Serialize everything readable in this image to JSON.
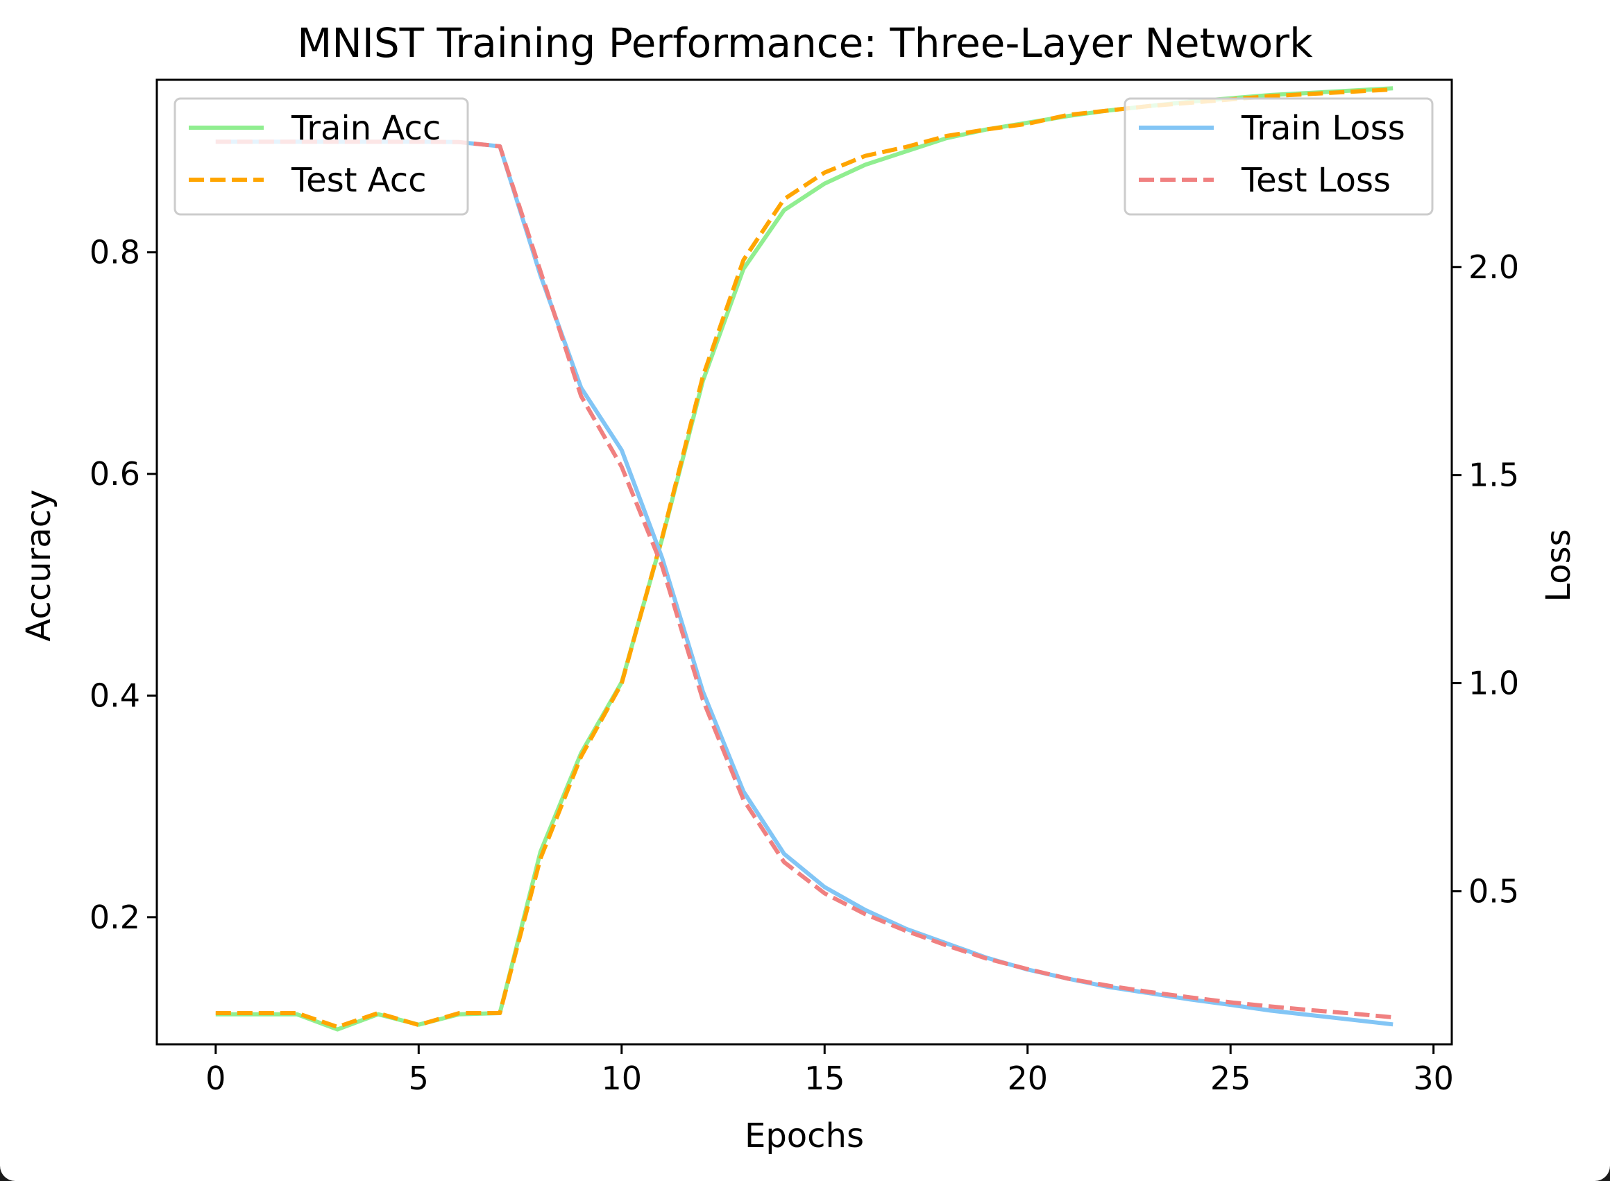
{
  "chart_data": {
    "type": "line",
    "title": "MNIST Training Performance: Three-Layer Network",
    "xlabel": "Epochs",
    "ylabel": "Accuracy",
    "y2label": "Loss",
    "xlim": [
      -1.45,
      30.45
    ],
    "ylim": [
      0.0853,
      0.9557
    ],
    "y2lim": [
      0.1322,
      2.4498
    ],
    "xticks": [
      "0",
      "5",
      "10",
      "15",
      "20",
      "25",
      "30"
    ],
    "yticks": [
      "0.2",
      "0.4",
      "0.6",
      "0.8"
    ],
    "y2ticks": [
      "0.5",
      "1.0",
      "1.5",
      "2.0"
    ],
    "x": [
      0,
      1,
      2,
      3,
      4,
      5,
      6,
      7,
      8,
      9,
      10,
      11,
      12,
      13,
      14,
      15,
      16,
      17,
      18,
      19,
      20,
      21,
      22,
      23,
      24,
      25,
      26,
      27,
      28,
      29
    ],
    "series": [
      {
        "name": "Train Acc",
        "axis": "left",
        "color": "#90ee90",
        "style": "solid",
        "values": [
          0.1124,
          0.1124,
          0.1124,
          0.0987,
          0.1124,
          0.103,
          0.1124,
          0.1135,
          0.259,
          0.348,
          0.412,
          0.542,
          0.684,
          0.785,
          0.838,
          0.862,
          0.879,
          0.891,
          0.903,
          0.911,
          0.917,
          0.923,
          0.928,
          0.932,
          0.936,
          0.939,
          0.942,
          0.944,
          0.946,
          0.948
        ]
      },
      {
        "name": "Test Acc",
        "axis": "left",
        "color": "#ffa500",
        "style": "dashed",
        "values": [
          0.1135,
          0.1135,
          0.1135,
          0.101,
          0.1135,
          0.1028,
          0.1135,
          0.1135,
          0.253,
          0.345,
          0.411,
          0.543,
          0.688,
          0.793,
          0.848,
          0.872,
          0.887,
          0.895,
          0.905,
          0.911,
          0.916,
          0.924,
          0.928,
          0.932,
          0.935,
          0.938,
          0.941,
          0.943,
          0.945,
          0.947
        ]
      },
      {
        "name": "Train Loss",
        "axis": "right",
        "color": "#82c5f5",
        "style": "solid",
        "values": [
          2.301,
          2.301,
          2.301,
          2.301,
          2.301,
          2.301,
          2.3,
          2.29,
          1.98,
          1.71,
          1.56,
          1.3,
          0.98,
          0.74,
          0.59,
          0.51,
          0.455,
          0.41,
          0.375,
          0.34,
          0.312,
          0.29,
          0.27,
          0.255,
          0.24,
          0.227,
          0.213,
          0.202,
          0.191,
          0.18
        ]
      },
      {
        "name": "Test Loss",
        "axis": "right",
        "color": "#f08080",
        "style": "dashed",
        "values": [
          2.301,
          2.301,
          2.301,
          2.301,
          2.301,
          2.301,
          2.3,
          2.29,
          1.99,
          1.69,
          1.52,
          1.28,
          0.96,
          0.72,
          0.57,
          0.495,
          0.445,
          0.405,
          0.37,
          0.338,
          0.313,
          0.29,
          0.273,
          0.258,
          0.245,
          0.233,
          0.223,
          0.214,
          0.206,
          0.197
        ]
      }
    ],
    "legends": [
      {
        "placement": "upper-left",
        "entries": [
          "Train Acc",
          "Test Acc"
        ]
      },
      {
        "placement": "upper-right",
        "entries": [
          "Train Loss",
          "Test Loss"
        ]
      }
    ],
    "grid": false
  }
}
